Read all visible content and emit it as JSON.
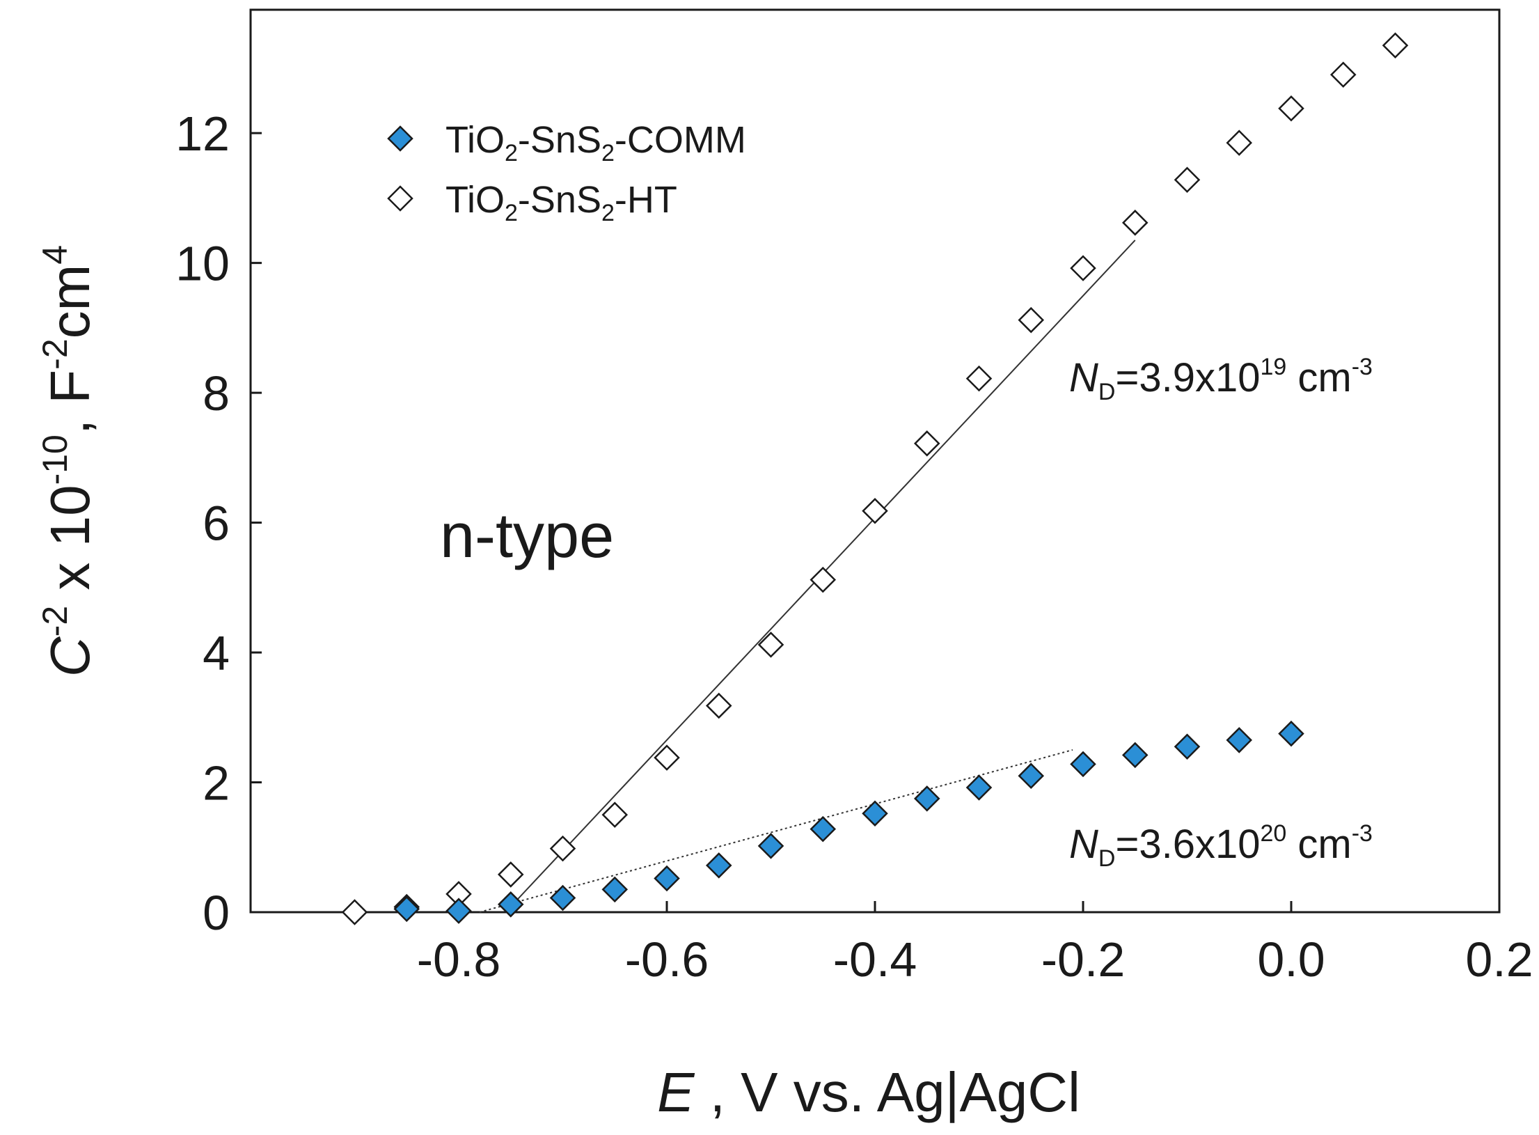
{
  "chart_data": {
    "type": "scatter",
    "x_label": {
      "italic": "E",
      "rest": " ,  V vs. Ag|AgCl"
    },
    "y_label": {
      "italic": "C",
      "sup1": "-2",
      "mid": " x 10",
      "sup2": "-10",
      "mid2": ", F",
      "sup3": "-2",
      "end": "cm",
      "sup4": "4"
    },
    "xlim": [
      -1.0,
      0.2
    ],
    "ylim": [
      0,
      13.9
    ],
    "x_ticks": [
      -0.8,
      -0.6,
      -0.4,
      -0.2,
      0.0,
      0.2
    ],
    "x_tick_labels": [
      "-0.8",
      "-0.6",
      "-0.4",
      "-0.2",
      "0.0",
      "0.2"
    ],
    "y_ticks": [
      0,
      2,
      4,
      6,
      8,
      10,
      12
    ],
    "y_tick_labels": [
      "0",
      "2",
      "4",
      "6",
      "8",
      "10",
      "12"
    ],
    "series": [
      {
        "name": "TiO2-SnS2-COMM",
        "legend": {
          "base1": "TiO",
          "sub1": "2",
          "base2": "-SnS",
          "sub2": "2",
          "base3": "-COMM"
        },
        "marker": "filled-diamond",
        "color": "#2b8fd6",
        "x": [
          -0.85,
          -0.8,
          -0.75,
          -0.7,
          -0.65,
          -0.6,
          -0.55,
          -0.5,
          -0.45,
          -0.4,
          -0.35,
          -0.3,
          -0.25,
          -0.2,
          -0.15,
          -0.1,
          -0.05,
          0.0
        ],
        "y": [
          0.05,
          0.02,
          0.12,
          0.22,
          0.35,
          0.52,
          0.72,
          1.02,
          1.28,
          1.52,
          1.75,
          1.92,
          2.1,
          2.28,
          2.42,
          2.55,
          2.65,
          2.75
        ]
      },
      {
        "name": "TiO2-SnS2-HT",
        "legend": {
          "base1": "TiO",
          "sub1": "2",
          "base2": "-SnS",
          "sub2": "2",
          "base3": "-HT"
        },
        "marker": "open-diamond",
        "color": "#ffffff",
        "x": [
          -0.9,
          -0.85,
          -0.8,
          -0.75,
          -0.7,
          -0.65,
          -0.6,
          -0.55,
          -0.5,
          -0.45,
          -0.4,
          -0.35,
          -0.3,
          -0.25,
          -0.2,
          -0.15,
          -0.1,
          -0.05,
          0.0,
          0.05,
          0.1
        ],
        "y": [
          0.0,
          0.08,
          0.28,
          0.58,
          0.98,
          1.5,
          2.38,
          3.18,
          4.12,
          5.12,
          6.18,
          7.22,
          8.22,
          9.12,
          9.92,
          10.62,
          11.28,
          11.85,
          12.38,
          12.9,
          13.35
        ]
      }
    ],
    "fit_lines": [
      {
        "series": "TiO2-SnS2-HT",
        "style": "solid",
        "x": [
          -0.755,
          -0.15
        ],
        "y": [
          0.0,
          10.35
        ]
      },
      {
        "series": "TiO2-SnS2-COMM",
        "style": "dotted",
        "x": [
          -0.78,
          -0.21
        ],
        "y": [
          0.0,
          2.5
        ]
      }
    ],
    "annotations": [
      {
        "text": "n-type"
      },
      {
        "italic": "N",
        "sub": "D",
        "main": "=3.9x10",
        "sup": "19",
        "unit": " cm",
        "unit_sup": "-3"
      },
      {
        "italic": "N",
        "sub": "D",
        "main": "=3.6x10",
        "sup": "20",
        "unit": " cm",
        "unit_sup": "-3"
      }
    ]
  }
}
